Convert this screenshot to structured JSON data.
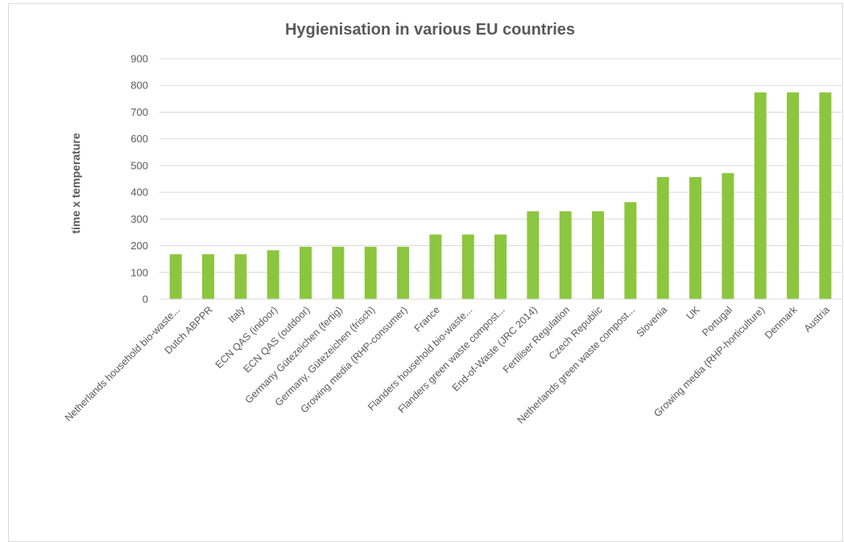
{
  "chart_data": {
    "type": "bar",
    "title": "Hygienisation in various EU countries",
    "xlabel": "",
    "ylabel": "time x temperature",
    "ylim": [
      0,
      900
    ],
    "yticks": [
      0,
      100,
      200,
      300,
      400,
      500,
      600,
      700,
      800,
      900
    ],
    "grid": true,
    "bar_color": "#8cc63f",
    "categories": [
      "Netherlands household bio-waste...",
      "Dutch ABPPR",
      "Italy",
      "ECN QAS (indoor)",
      "ECN QAS (outdoor)",
      "Germany Gütezeichen (fertig)",
      "Germany, Gütezeichen (frisch)",
      "Growing media (RHP-consumer)",
      "France",
      "Flanders household bio-waste...",
      "Flanders green waste compost...",
      "End-of-Waste (JRC 2014)",
      "Fertiliser Regulation",
      "Czech Republic",
      "Netherlands green waste compost...",
      "Slovenia",
      "UK",
      "Portugal",
      "Growing media (RHP-horticulture)",
      "Denmark",
      "Austria"
    ],
    "values": [
      168,
      168,
      168,
      183,
      196,
      196,
      196,
      196,
      242,
      242,
      242,
      329,
      329,
      329,
      363,
      457,
      457,
      472,
      774,
      774,
      774
    ]
  }
}
